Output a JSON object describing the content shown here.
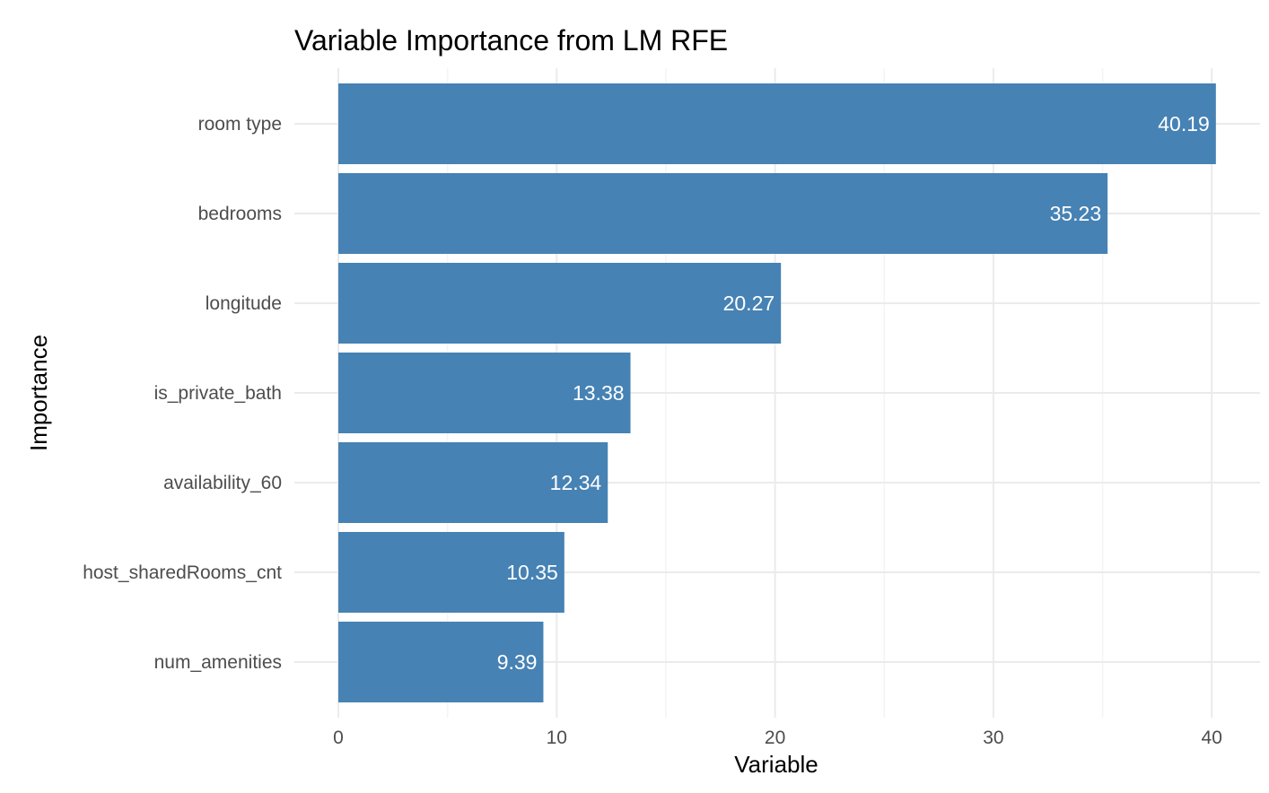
{
  "chart_data": {
    "type": "bar",
    "orientation": "horizontal",
    "title": "Variable Importance from LM RFE",
    "xlabel": "Variable",
    "ylabel": "Importance",
    "categories": [
      "room type",
      "bedrooms",
      "longitude",
      "is_private_bath",
      "availability_60",
      "host_sharedRooms_cnt",
      "num_amenities"
    ],
    "values": [
      40.19,
      35.23,
      20.27,
      13.38,
      12.34,
      10.35,
      9.39
    ],
    "value_labels": [
      "40.19",
      "35.23",
      "20.27",
      "13.38",
      "12.34",
      "10.35",
      "9.39"
    ],
    "xticks": [
      0,
      10,
      20,
      30,
      40
    ],
    "xtick_labels": [
      "0",
      "10",
      "20",
      "30",
      "40"
    ],
    "xlim": [
      0,
      42.2
    ],
    "grid": true,
    "legend": "none",
    "bar_color": "#4682b4"
  }
}
